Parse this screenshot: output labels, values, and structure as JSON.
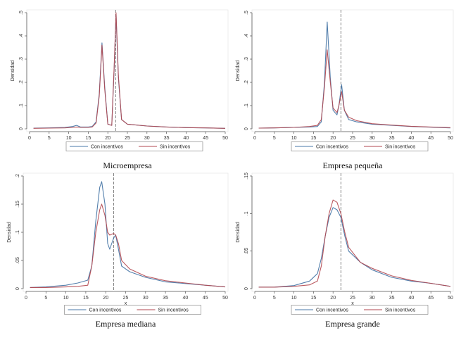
{
  "colors": {
    "con": "#4a78a8",
    "sin": "#b3474f",
    "vline": "#666666"
  },
  "chart_data": [
    {
      "type": "line",
      "caption": "Microempresa",
      "xlabel": "x",
      "ylabel": "Densidad",
      "xlim": [
        0,
        50
      ],
      "ylim": [
        0,
        0.5
      ],
      "xticks": [
        0,
        5,
        10,
        15,
        20,
        25,
        30,
        35,
        40,
        45,
        50
      ],
      "yticks": [
        0,
        0.1,
        0.2,
        0.3,
        0.4,
        0.5
      ],
      "ytick_labels": [
        "0",
        ".1",
        ".2",
        ".3",
        ".4",
        ".5"
      ],
      "vline": 22,
      "legend": "bottom",
      "series": [
        {
          "name": "Con incentivos",
          "color_key": "con",
          "points": [
            [
              1,
              0.003
            ],
            [
              5,
              0.004
            ],
            [
              9,
              0.006
            ],
            [
              11,
              0.01
            ],
            [
              12,
              0.015
            ],
            [
              13,
              0.008
            ],
            [
              15,
              0.008
            ],
            [
              16,
              0.01
            ],
            [
              17,
              0.03
            ],
            [
              17.8,
              0.15
            ],
            [
              18.5,
              0.37
            ],
            [
              19.2,
              0.18
            ],
            [
              20,
              0.02
            ],
            [
              21,
              0.015
            ],
            [
              21.6,
              0.25
            ],
            [
              22.1,
              0.49
            ],
            [
              22.7,
              0.22
            ],
            [
              23.5,
              0.04
            ],
            [
              25,
              0.02
            ],
            [
              30,
              0.012
            ],
            [
              35,
              0.008
            ],
            [
              40,
              0.005
            ],
            [
              45,
              0.004
            ],
            [
              50,
              0.002
            ]
          ]
        },
        {
          "name": "Sin incentivos",
          "color_key": "sin",
          "points": [
            [
              1,
              0.002
            ],
            [
              5,
              0.003
            ],
            [
              9,
              0.004
            ],
            [
              11,
              0.006
            ],
            [
              12,
              0.008
            ],
            [
              13,
              0.006
            ],
            [
              15,
              0.006
            ],
            [
              16,
              0.008
            ],
            [
              17,
              0.025
            ],
            [
              17.8,
              0.14
            ],
            [
              18.5,
              0.36
            ],
            [
              19.2,
              0.17
            ],
            [
              20,
              0.02
            ],
            [
              21,
              0.015
            ],
            [
              21.6,
              0.26
            ],
            [
              22.1,
              0.5
            ],
            [
              22.7,
              0.23
            ],
            [
              23.5,
              0.04
            ],
            [
              25,
              0.02
            ],
            [
              30,
              0.012
            ],
            [
              35,
              0.008
            ],
            [
              40,
              0.005
            ],
            [
              45,
              0.004
            ],
            [
              50,
              0.002
            ]
          ]
        }
      ]
    },
    {
      "type": "line",
      "caption": "Empresa pequeña",
      "xlabel": "x",
      "ylabel": "Densidad",
      "xlim": [
        0,
        50
      ],
      "ylim": [
        0,
        0.5
      ],
      "xticks": [
        0,
        5,
        10,
        15,
        20,
        25,
        30,
        35,
        40,
        45,
        50
      ],
      "yticks": [
        0,
        0.1,
        0.2,
        0.3,
        0.4,
        0.5
      ],
      "ytick_labels": [
        "0",
        ".1",
        ".2",
        ".3",
        ".4",
        ".5"
      ],
      "vline": 22,
      "legend": "bottom",
      "series": [
        {
          "name": "Con incentivos",
          "color_key": "con",
          "points": [
            [
              1,
              0.003
            ],
            [
              5,
              0.004
            ],
            [
              10,
              0.006
            ],
            [
              14,
              0.008
            ],
            [
              16,
              0.01
            ],
            [
              17,
              0.03
            ],
            [
              17.8,
              0.2
            ],
            [
              18.5,
              0.46
            ],
            [
              19.3,
              0.22
            ],
            [
              20,
              0.08
            ],
            [
              21,
              0.06
            ],
            [
              21.5,
              0.1
            ],
            [
              22.2,
              0.19
            ],
            [
              22.9,
              0.08
            ],
            [
              24,
              0.04
            ],
            [
              26,
              0.03
            ],
            [
              30,
              0.02
            ],
            [
              35,
              0.015
            ],
            [
              40,
              0.01
            ],
            [
              45,
              0.007
            ],
            [
              50,
              0.004
            ]
          ]
        },
        {
          "name": "Sin incentivos",
          "color_key": "sin",
          "points": [
            [
              1,
              0.003
            ],
            [
              5,
              0.004
            ],
            [
              10,
              0.006
            ],
            [
              14,
              0.01
            ],
            [
              16,
              0.015
            ],
            [
              17,
              0.04
            ],
            [
              17.8,
              0.18
            ],
            [
              18.5,
              0.34
            ],
            [
              19.3,
              0.2
            ],
            [
              20,
              0.09
            ],
            [
              21,
              0.07
            ],
            [
              21.5,
              0.1
            ],
            [
              22.2,
              0.16
            ],
            [
              22.9,
              0.08
            ],
            [
              24,
              0.05
            ],
            [
              26,
              0.035
            ],
            [
              30,
              0.022
            ],
            [
              35,
              0.016
            ],
            [
              40,
              0.011
            ],
            [
              45,
              0.008
            ],
            [
              50,
              0.005
            ]
          ]
        }
      ]
    },
    {
      "type": "line",
      "caption": "Empresa mediana",
      "xlabel": "x",
      "ylabel": "Densidad",
      "xlim": [
        0,
        50
      ],
      "ylim": [
        0,
        0.2
      ],
      "xticks": [
        0,
        5,
        10,
        15,
        20,
        25,
        30,
        35,
        40,
        45,
        50
      ],
      "yticks": [
        0,
        0.05,
        0.1,
        0.15,
        0.2
      ],
      "ytick_labels": [
        "0",
        ".05",
        ".1",
        ".15",
        ".2"
      ],
      "vline": 22,
      "legend": "bottom",
      "series": [
        {
          "name": "Con incentivos",
          "color_key": "con",
          "points": [
            [
              1,
              0.002
            ],
            [
              5,
              0.003
            ],
            [
              10,
              0.006
            ],
            [
              13,
              0.01
            ],
            [
              15.5,
              0.015
            ],
            [
              16.5,
              0.04
            ],
            [
              17.5,
              0.12
            ],
            [
              18.5,
              0.18
            ],
            [
              19,
              0.19
            ],
            [
              19.8,
              0.15
            ],
            [
              20.5,
              0.08
            ],
            [
              21,
              0.07
            ],
            [
              22,
              0.09
            ],
            [
              22.5,
              0.095
            ],
            [
              23.2,
              0.07
            ],
            [
              24,
              0.04
            ],
            [
              26,
              0.03
            ],
            [
              30,
              0.02
            ],
            [
              35,
              0.012
            ],
            [
              40,
              0.009
            ],
            [
              45,
              0.006
            ],
            [
              50,
              0.003
            ]
          ]
        },
        {
          "name": "Sin incentivos",
          "color_key": "sin",
          "points": [
            [
              1,
              0.002
            ],
            [
              5,
              0.002
            ],
            [
              10,
              0.003
            ],
            [
              13,
              0.004
            ],
            [
              15.5,
              0.006
            ],
            [
              16.5,
              0.04
            ],
            [
              17.5,
              0.1
            ],
            [
              18.5,
              0.14
            ],
            [
              19,
              0.15
            ],
            [
              19.8,
              0.13
            ],
            [
              20.5,
              0.1
            ],
            [
              21,
              0.095
            ],
            [
              22,
              0.098
            ],
            [
              22.5,
              0.095
            ],
            [
              23.2,
              0.08
            ],
            [
              24,
              0.05
            ],
            [
              26,
              0.035
            ],
            [
              30,
              0.022
            ],
            [
              35,
              0.014
            ],
            [
              40,
              0.01
            ],
            [
              45,
              0.006
            ],
            [
              50,
              0.003
            ]
          ]
        }
      ]
    },
    {
      "type": "line",
      "caption": "Empresa grande",
      "xlabel": "x",
      "ylabel": "Densidad",
      "xlim": [
        0,
        50
      ],
      "ylim": [
        0,
        0.15
      ],
      "xticks": [
        0,
        5,
        10,
        15,
        20,
        25,
        30,
        35,
        40,
        45,
        50
      ],
      "yticks": [
        0,
        0.05,
        0.1,
        0.15
      ],
      "ytick_labels": [
        "0",
        ".05",
        ".1",
        ".15"
      ],
      "vline": 22,
      "legend": "bottom",
      "series": [
        {
          "name": "Con incentivos",
          "color_key": "con",
          "points": [
            [
              1,
              0.002
            ],
            [
              5,
              0.002
            ],
            [
              10,
              0.004
            ],
            [
              14,
              0.01
            ],
            [
              16,
              0.02
            ],
            [
              17,
              0.04
            ],
            [
              18,
              0.07
            ],
            [
              19,
              0.095
            ],
            [
              20,
              0.108
            ],
            [
              21,
              0.105
            ],
            [
              22,
              0.095
            ],
            [
              23,
              0.07
            ],
            [
              24,
              0.05
            ],
            [
              27,
              0.035
            ],
            [
              30,
              0.025
            ],
            [
              35,
              0.015
            ],
            [
              40,
              0.01
            ],
            [
              45,
              0.007
            ],
            [
              50,
              0.003
            ]
          ]
        },
        {
          "name": "Sin incentivos",
          "color_key": "sin",
          "points": [
            [
              1,
              0.002
            ],
            [
              5,
              0.002
            ],
            [
              10,
              0.003
            ],
            [
              14,
              0.005
            ],
            [
              16,
              0.01
            ],
            [
              17,
              0.03
            ],
            [
              18,
              0.07
            ],
            [
              19,
              0.1
            ],
            [
              20,
              0.118
            ],
            [
              21,
              0.115
            ],
            [
              22,
              0.1
            ],
            [
              23,
              0.075
            ],
            [
              24,
              0.055
            ],
            [
              27,
              0.035
            ],
            [
              30,
              0.027
            ],
            [
              35,
              0.017
            ],
            [
              40,
              0.011
            ],
            [
              45,
              0.007
            ],
            [
              50,
              0.003
            ]
          ]
        }
      ]
    }
  ]
}
